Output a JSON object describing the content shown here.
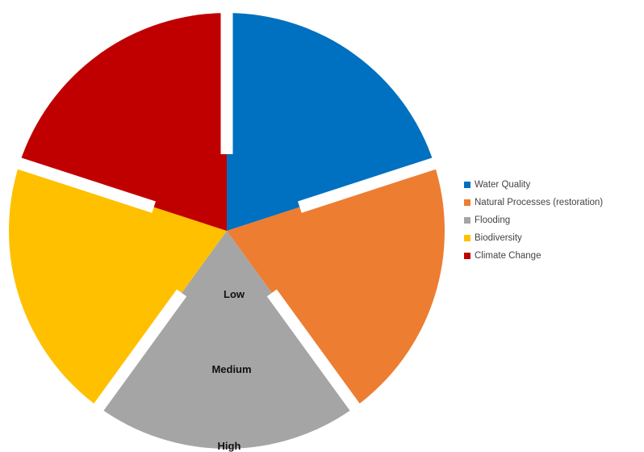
{
  "chart_data": {
    "type": "pie",
    "categories": [
      "Water Quality",
      "Natural Processes (restoration)",
      "Flooding",
      "Biodiversity",
      "Climate Change"
    ],
    "values": [
      20,
      20,
      20,
      20,
      20
    ],
    "colors": [
      "#0070C0",
      "#ED7D31",
      "#A5A5A5",
      "#FFC000",
      "#C00000"
    ],
    "gap_color": "#ffffff",
    "ring_labels": [
      "Low",
      "Medium",
      "High"
    ],
    "legend_position": "right"
  }
}
